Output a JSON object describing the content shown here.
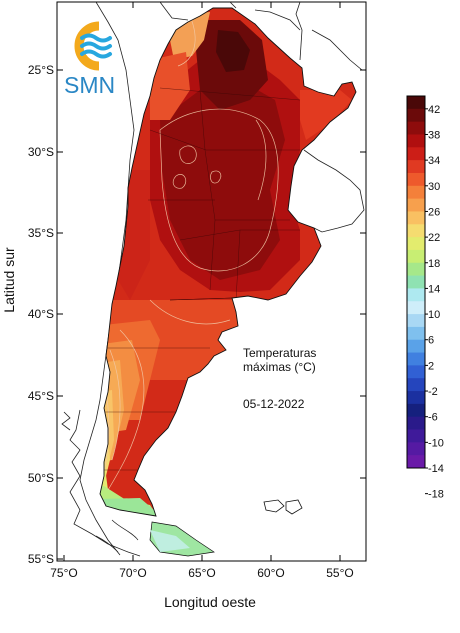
{
  "logo": {
    "text": "SMN",
    "ring_color": "#f3a91c",
    "wave_color": "#27a7df",
    "text_color": "#2a87c5"
  },
  "annotation": {
    "line1": "Temperaturas",
    "line2": "máximas (°C)",
    "date": "05-12-2022"
  },
  "axes": {
    "y_label": "Latitud sur",
    "x_label": "Longitud oeste",
    "lat_ticks": [
      "25°S",
      "30°S",
      "35°S",
      "40°S",
      "45°S",
      "50°S",
      "55°S"
    ],
    "lon_ticks": [
      "75°O",
      "70°O",
      "65°O",
      "60°O",
      "55°O"
    ]
  },
  "legend": {
    "labels": [
      "42",
      "38",
      "34",
      "30",
      "26",
      "22",
      "18",
      "14",
      "10",
      "6",
      "2",
      "-2",
      "-6",
      "-10",
      "-14",
      "-18"
    ],
    "colors": [
      "#4a0808",
      "#6b0a0a",
      "#8e0c0c",
      "#b00f0f",
      "#cc1e17",
      "#e03a22",
      "#ee5a2c",
      "#f4803a",
      "#f7a04d",
      "#f9c062",
      "#f5dc70",
      "#e3ec6e",
      "#c8ee73",
      "#a6e88a",
      "#8fe2b2",
      "#aee9f0",
      "#cfeefa",
      "#a9d8f4",
      "#7fc0ee",
      "#5aa2e8",
      "#4080e0",
      "#3160d4",
      "#2545bd",
      "#1b30a0",
      "#15207e",
      "#2a1a8a",
      "#3f1a9a",
      "#551aa3",
      "#6a1aa8"
    ]
  }
}
